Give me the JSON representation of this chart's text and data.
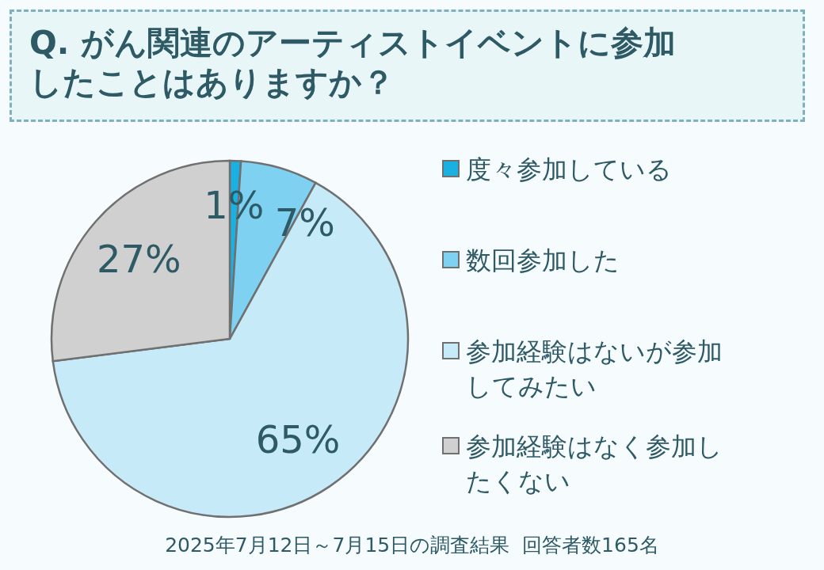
{
  "chart_data": {
    "type": "pie",
    "title": "Q. がん関連のアーティストイベントに参加したことはありますか？",
    "categories": [
      "度々参加している",
      "数回参加した",
      "参加経験はないが参加してみたい",
      "参加経験はなく参加したくない"
    ],
    "values": [
      1,
      7,
      65,
      27
    ],
    "value_labels": [
      "1%",
      "7%",
      "65%",
      "27%"
    ],
    "colors": [
      "#1ab0e2",
      "#7fd1f1",
      "#c6eaf8",
      "#d0d0d0"
    ],
    "legend": "right",
    "annotations": [
      "2025年7月12日～7月15日の調査結果  回答者数165名"
    ]
  }
}
